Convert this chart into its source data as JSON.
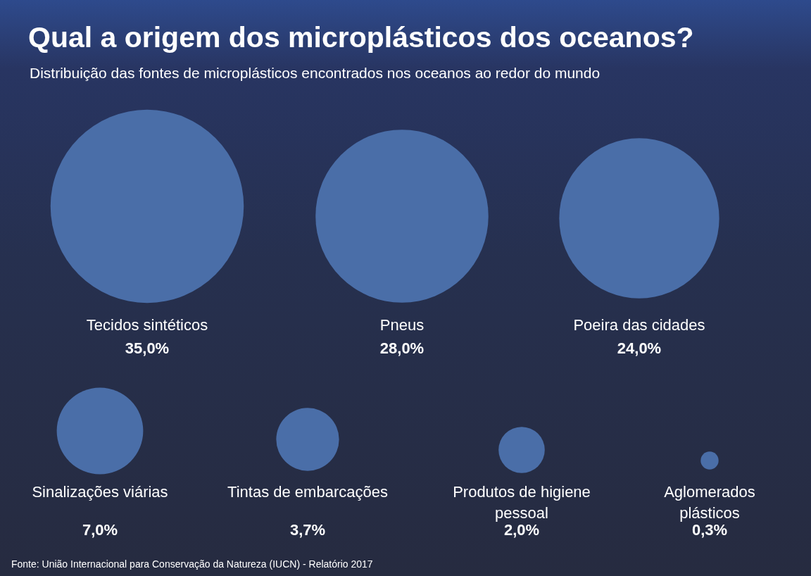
{
  "chart_data": {
    "type": "other",
    "title": "Qual a origem dos microplásticos dos oceanos?",
    "subtitle": "Distribuição das fontes de microplásticos encontrados nos oceanos ao redor do mundo",
    "categories": [
      "Tecidos sintéticos",
      "Pneus",
      "Poeira das cidades",
      "Sinalizações viárias",
      "Tintas de embarcações",
      "Produtos de higiene pessoal",
      "Aglomerados plásticos"
    ],
    "values": [
      35,
      28,
      24,
      7,
      3.7,
      2,
      0.3
    ],
    "value_labels": [
      "35,0%",
      "28,0%",
      "24,0%",
      "7,0%",
      "3,7%",
      "2,0%",
      "0,3%"
    ],
    "color": "#4a6ea8",
    "annotations": [
      "Fonte: União Internacional para Conservação da Natureza (IUCN) - Relatório 2017"
    ]
  }
}
